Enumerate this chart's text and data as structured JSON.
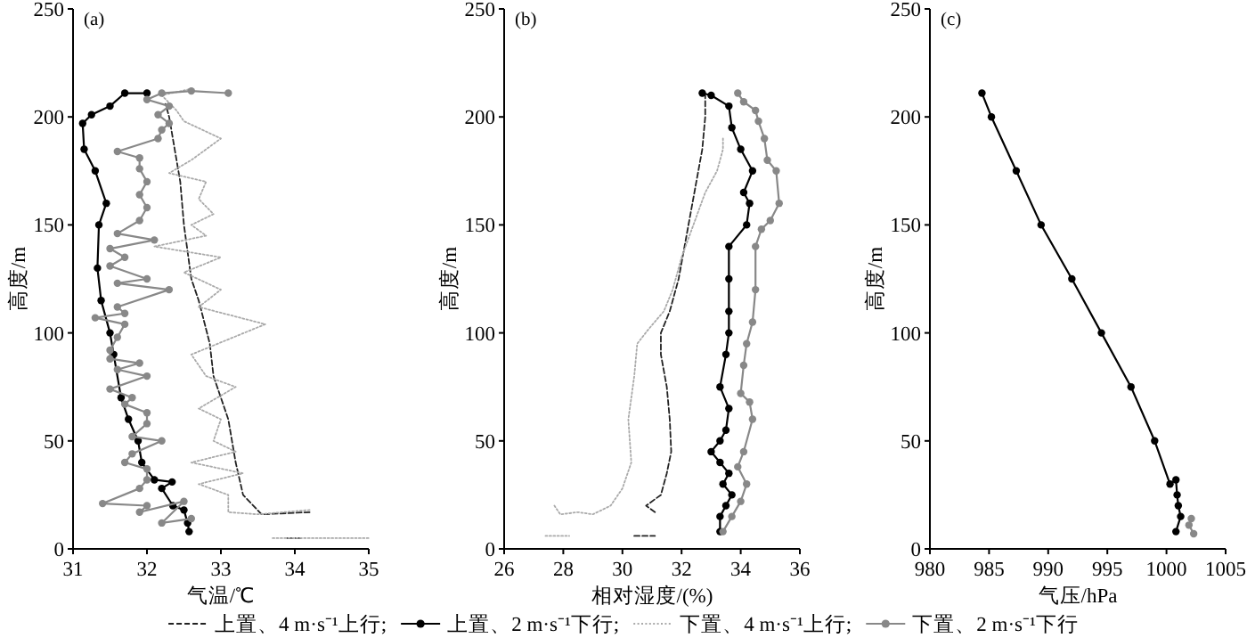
{
  "chart_data": [
    {
      "type": "line",
      "title": "(a)",
      "xlabel": "气温/℃",
      "ylabel": "高度/m",
      "xlim": [
        31,
        35
      ],
      "xticks": [
        31,
        32,
        33,
        34,
        35
      ],
      "ylim": [
        0,
        250
      ],
      "yticks": [
        0,
        50,
        100,
        150,
        200,
        250
      ],
      "legend": "bottom",
      "series": [
        {
          "name": "上置、4 m·s⁻¹上行;",
          "color": "#222222",
          "line_style": "dashed",
          "marker": "none",
          "x": [
            34.2,
            33.55,
            33.3,
            33.2,
            33.1,
            32.9,
            32.85,
            32.7,
            32.6,
            32.5,
            32.45,
            32.35,
            32.3,
            32.25,
            null,
            33.9,
            34.1
          ],
          "values": [
            17,
            16,
            25,
            40,
            60,
            80,
            95,
            115,
            125,
            150,
            170,
            190,
            200,
            206,
            null,
            5,
            5
          ]
        },
        {
          "name": "上置、2 m·s⁻¹下行;",
          "color": "#000000",
          "line_style": "solid",
          "marker": "circle",
          "x": [
            32.0,
            31.7,
            31.5,
            31.25,
            31.13,
            31.15,
            31.3,
            31.45,
            31.35,
            31.33,
            31.38,
            31.5,
            31.55,
            31.65,
            31.75,
            31.88,
            31.93,
            32.1,
            32.34,
            32.2,
            32.35,
            32.5,
            32.55,
            32.57
          ],
          "values": [
            211,
            211,
            205,
            201,
            197,
            185,
            175,
            160,
            150,
            130,
            115,
            100,
            90,
            70,
            60,
            50,
            40,
            32,
            31,
            28,
            20,
            18,
            12,
            8
          ]
        },
        {
          "name": "下置、4 m·s⁻¹上行;",
          "color": "#aaaaaa",
          "line_style": "dotted",
          "marker": "none",
          "x": [
            34.2,
            33.5,
            33.1,
            33.1,
            32.7,
            33.3,
            32.6,
            33.2,
            32.9,
            33.0,
            32.7,
            33.2,
            32.8,
            32.6,
            33.6,
            32.7,
            33.0,
            32.5,
            33.0,
            32.1,
            32.8,
            32.6,
            32.9,
            32.7,
            32.8,
            32.3,
            32.6,
            33.0,
            32.5,
            32.4,
            32.2,
            32.6,
            null,
            33.7,
            35.0
          ],
          "values": [
            18,
            16,
            17,
            25,
            30,
            35,
            40,
            45,
            50,
            60,
            65,
            75,
            80,
            90,
            104,
            112,
            120,
            128,
            135,
            140,
            145,
            150,
            155,
            162,
            170,
            174,
            180,
            190,
            198,
            203,
            210,
            213,
            null,
            5,
            5
          ]
        },
        {
          "name": "下置、2 m·s⁻¹下行",
          "color": "#888888",
          "line_style": "solid",
          "marker": "circle",
          "x": [
            33.1,
            32.6,
            32.2,
            32.0,
            32.3,
            32.15,
            32.3,
            32.2,
            32.15,
            31.6,
            31.9,
            31.9,
            32.0,
            31.9,
            32.0,
            31.9,
            31.6,
            32.1,
            31.5,
            31.7,
            31.5,
            32.0,
            31.6,
            32.3,
            31.6,
            31.7,
            31.3,
            31.7,
            31.6,
            31.5,
            31.5,
            31.9,
            31.6,
            32.0,
            31.5,
            31.8,
            31.7,
            32.0,
            32.0,
            31.8,
            32.2,
            31.8,
            31.7,
            32.0,
            32.0,
            31.9,
            31.4,
            32.0,
            31.9,
            32.5,
            32.2,
            32.6
          ],
          "values": [
            211,
            212,
            211,
            208,
            205,
            201,
            197,
            194,
            190,
            184,
            181,
            176,
            170,
            164,
            158,
            152,
            146,
            143,
            139,
            135,
            131,
            125,
            123,
            120,
            112,
            109,
            107,
            104,
            98,
            92,
            88,
            86,
            83,
            80,
            74,
            70,
            67,
            63,
            58,
            52,
            50,
            44,
            40,
            37,
            32,
            28,
            21,
            20,
            17,
            22,
            12,
            14
          ]
        }
      ]
    },
    {
      "type": "line",
      "title": "(b)",
      "xlabel": "相对湿度/(%)",
      "ylabel": "高度/m",
      "xlim": [
        26,
        36
      ],
      "xticks": [
        26,
        28,
        30,
        32,
        34,
        36
      ],
      "ylim": [
        0,
        250
      ],
      "yticks": [
        0,
        50,
        100,
        150,
        200,
        250
      ],
      "series": [
        {
          "color": "#222222",
          "line_style": "dashed",
          "marker": "none",
          "x": [
            31.1,
            30.8,
            31.3,
            31.5,
            31.65,
            31.6,
            31.5,
            31.3,
            31.3,
            31.6,
            31.9,
            32.1,
            32.3,
            32.5,
            32.7,
            32.8,
            32.8,
            null,
            30.4,
            31.1
          ],
          "values": [
            17,
            20,
            25,
            35,
            45,
            60,
            75,
            90,
            100,
            110,
            125,
            140,
            155,
            170,
            185,
            200,
            210,
            null,
            6,
            6
          ]
        },
        {
          "color": "#000000",
          "line_style": "solid",
          "marker": "circle",
          "x": [
            33.3,
            33.3,
            33.5,
            33.7,
            33.4,
            33.6,
            33.3,
            33.0,
            33.3,
            33.5,
            33.6,
            33.3,
            33.5,
            33.6,
            33.6,
            33.6,
            33.6,
            34.2,
            34.3,
            34.1,
            34.4,
            34.0,
            33.7,
            33.6,
            33.0,
            32.7
          ],
          "values": [
            8,
            15,
            20,
            25,
            30,
            35,
            40,
            45,
            50,
            55,
            65,
            75,
            90,
            100,
            110,
            125,
            140,
            150,
            160,
            165,
            175,
            185,
            195,
            205,
            210,
            211
          ]
        },
        {
          "color": "#aaaaaa",
          "line_style": "dotted",
          "marker": "none",
          "x": [
            27.7,
            27.9,
            28.5,
            29.0,
            29.6,
            30.0,
            30.3,
            30.2,
            30.4,
            30.5,
            30.9,
            31.4,
            31.7,
            32.0,
            32.4,
            32.8,
            33.2,
            33.4,
            33.4,
            null,
            27.4,
            28.2
          ],
          "values": [
            20,
            16,
            17,
            16,
            20,
            28,
            40,
            60,
            80,
            95,
            102,
            110,
            120,
            135,
            150,
            165,
            175,
            185,
            190,
            null,
            6,
            6
          ]
        },
        {
          "color": "#888888",
          "line_style": "solid",
          "marker": "circle",
          "x": [
            33.4,
            33.7,
            34.0,
            34.2,
            33.9,
            34.1,
            34.4,
            34.3,
            34.0,
            34.1,
            34.2,
            34.4,
            34.5,
            34.5,
            34.7,
            35.0,
            35.3,
            35.2,
            34.9,
            34.8,
            34.6,
            34.5,
            34.1,
            33.9
          ],
          "values": [
            8,
            15,
            22,
            30,
            38,
            45,
            60,
            68,
            72,
            85,
            95,
            105,
            120,
            140,
            148,
            152,
            160,
            175,
            180,
            190,
            198,
            203,
            207,
            211
          ]
        }
      ]
    },
    {
      "type": "line",
      "title": "(c)",
      "xlabel": "气压/hPa",
      "ylabel": "高度/m",
      "xlim": [
        980,
        1005
      ],
      "xticks": [
        980,
        985,
        990,
        995,
        1000,
        1005
      ],
      "ylim": [
        0,
        250
      ],
      "yticks": [
        0,
        50,
        100,
        150,
        200,
        250
      ],
      "series": [
        {
          "color": "#000000",
          "line_style": "solid",
          "marker": "circle",
          "x": [
            1000.8,
            1001.2,
            1001,
            1000.9,
            1000.8,
            1000.3,
            999,
            997,
            994.5,
            992,
            989.4,
            987.3,
            985.2,
            984.4
          ],
          "values": [
            8,
            15,
            20,
            25,
            32,
            30,
            50,
            75,
            100,
            125,
            150,
            175,
            200,
            211
          ]
        },
        {
          "color": "#888888",
          "line_style": "solid",
          "marker": "circle",
          "x": [
            1002.3,
            1001.9,
            1002.1
          ],
          "values": [
            7,
            11,
            14
          ]
        }
      ]
    }
  ]
}
